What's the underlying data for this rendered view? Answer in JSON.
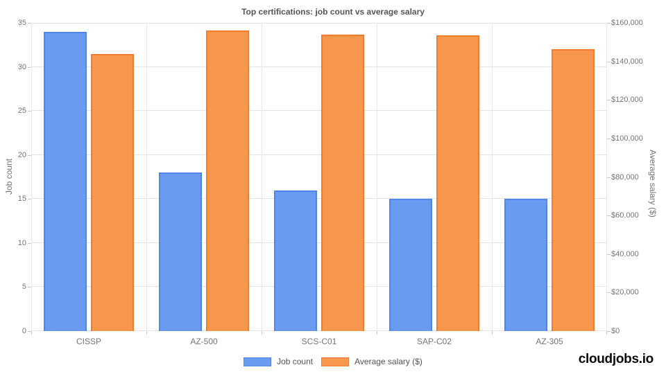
{
  "chart_data": {
    "type": "bar",
    "title": "Top certifications: job count vs average salary",
    "categories": [
      "CISSP",
      "AZ-500",
      "SCS-C01",
      "SAP-C02",
      "AZ-305"
    ],
    "series": [
      {
        "name": "Job count",
        "axis": "left",
        "color": "#699CF1",
        "border_color": "#5185E9",
        "values": [
          34,
          18,
          16,
          15,
          15
        ]
      },
      {
        "name": "Average salary ($)",
        "axis": "right",
        "color": "#F9964D",
        "border_color": "#F07E2C",
        "values": [
          144000,
          156000,
          154000,
          153500,
          146500
        ]
      }
    ],
    "left_axis": {
      "label": "Job count",
      "min": 0,
      "max": 35,
      "step": 5,
      "ticks": [
        "0",
        "5",
        "10",
        "15",
        "20",
        "25",
        "30",
        "35"
      ]
    },
    "right_axis": {
      "label": "Average salary ($)",
      "min": 0,
      "max": 160000,
      "step": 20000,
      "ticks": [
        "$0",
        "$20,000",
        "$40,000",
        "$60,000",
        "$80,000",
        "$100,000",
        "$120,000",
        "$140,000",
        "$160,000"
      ]
    },
    "grid": true,
    "legend_position": "bottom"
  },
  "branding": {
    "text": "cloudjobs.io"
  }
}
